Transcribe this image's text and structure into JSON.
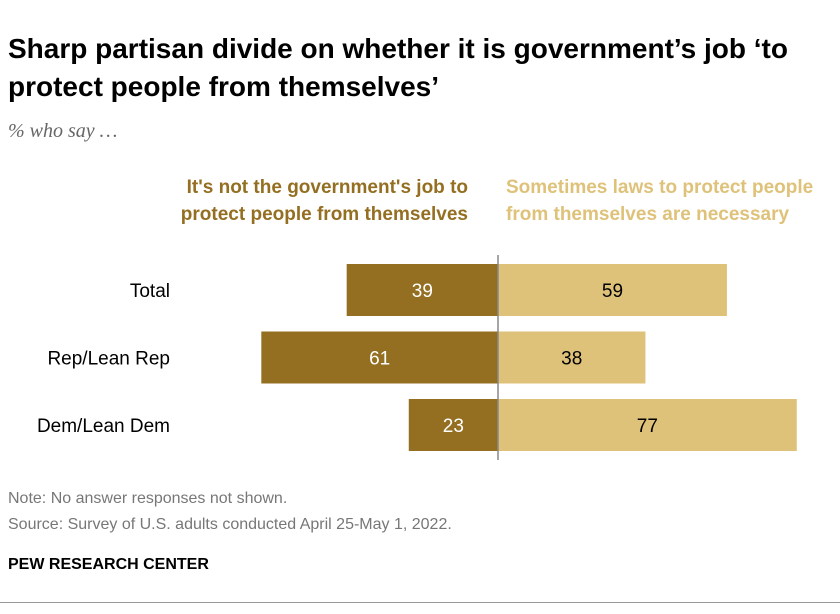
{
  "title": "Sharp partisan divide on whether it is government’s job ‘to protect people from themselves’",
  "subtitle": "% who say …",
  "note": "Note: No answer responses not shown.",
  "source": "Source: Survey of U.S. adults conducted April 25-May 1, 2022.",
  "brand": "PEW RESEARCH CENTER",
  "chart_data": {
    "type": "bar",
    "orientation": "horizontal-diverging",
    "categories": [
      "Total",
      "Rep/Lean Rep",
      "Dem/Lean Dem"
    ],
    "series": [
      {
        "name": "It's not the government's job to protect people from themselves",
        "values": [
          39,
          61,
          23
        ],
        "color": "#946F22",
        "label_color": "#FFFFFF"
      },
      {
        "name": "Sometimes laws to protect people from themselves are necessary",
        "values": [
          59,
          38,
          77
        ],
        "color": "#DFC27A",
        "label_color": "#000000"
      }
    ]
  }
}
